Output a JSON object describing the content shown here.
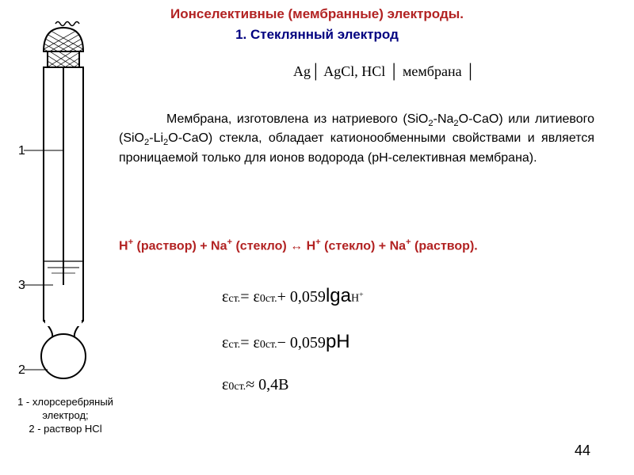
{
  "title": {
    "main": "Ионселективные (мембранные) электроды.",
    "sub": "1. Стеклянный электрод",
    "main_color": "#b22222",
    "sub_color": "#000080"
  },
  "notation": {
    "text": "Ag│ AgCl, HCl │ мембрана │"
  },
  "body": {
    "text_html": "<span class='indent'></span>Мембрана, изготовлена из натриевого (SiO<sub>2</sub>-Na<sub>2</sub>O-CaO) или литиевого (SiO<sub>2</sub>-Li<sub>2</sub>O-CaO) стекла, обладает катионообменными свойствами и является проницаемой только для  ионов водорода  (рН-селективная мембрана)."
  },
  "reaction": {
    "text_html": "H<sup>+</sup> (раствор) + Na<sup>+</sup> (стекло) ↔ H<sup>+</sup> (стекло) + Na<sup>+</sup> (раствор).",
    "color": "#b22222"
  },
  "equations": {
    "eq1_html": "ε<span class='sub-chem'>ст.</span> = ε<span class='sup-chem'>0</span><span class='sub-chem'>ст.</span> + 0,059<span class='lg'>lga</span><span class='sub-chem'>H<sup>+</sup></span>",
    "eq2_html": "ε<span class='sub-chem'>ст.</span> = ε<span class='sup-chem'>0</span><span class='sub-chem'>ст.</span> − 0,059<span class='lg'>pH</span>",
    "eq3_html": "ε<span class='sup-chem'>0</span><span class='sub-chem'>ст.</span> ≈ 0,4В"
  },
  "diagram": {
    "labels": {
      "l1": "1",
      "l2": "2",
      "l3": "3"
    },
    "caption_html": "1 - хлорсеребряный электрод;<br>2 - раствор HCl"
  },
  "page_number": "44",
  "style": {
    "background": "#ffffff",
    "body_font_size": 16,
    "title_font_size": 17,
    "eq_font_size": 20
  }
}
